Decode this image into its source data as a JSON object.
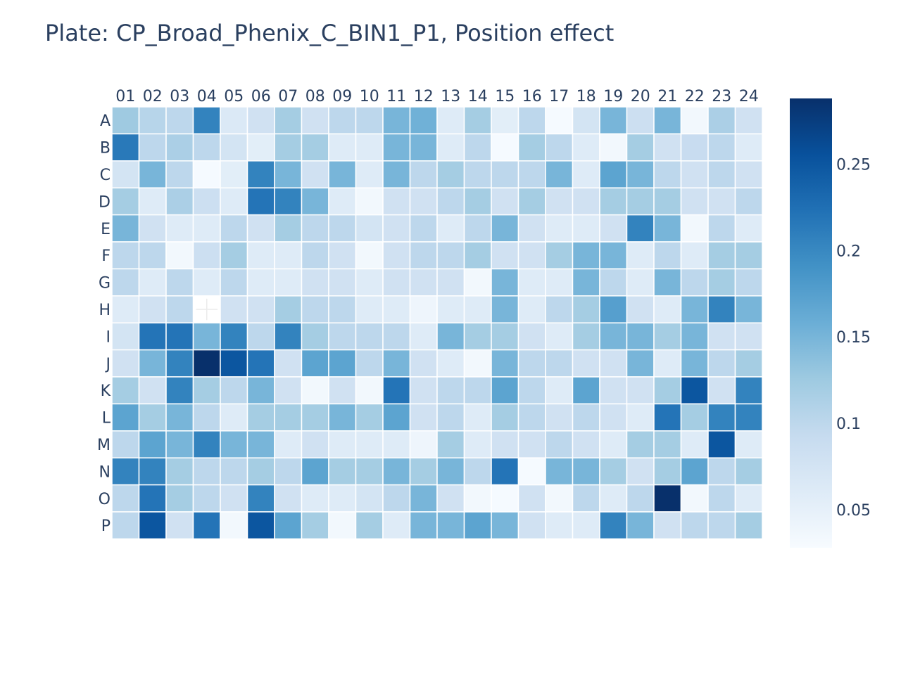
{
  "chart_data": {
    "type": "heatmap",
    "title": "Plate: CP_Broad_Phenix_C_BIN1_P1, Position effect",
    "columns": [
      "01",
      "02",
      "03",
      "04",
      "05",
      "06",
      "07",
      "08",
      "09",
      "10",
      "11",
      "12",
      "13",
      "14",
      "15",
      "16",
      "17",
      "18",
      "19",
      "20",
      "21",
      "22",
      "23",
      "24"
    ],
    "rows": [
      "A",
      "B",
      "C",
      "D",
      "E",
      "F",
      "G",
      "H",
      "I",
      "J",
      "K",
      "L",
      "M",
      "N",
      "O",
      "P"
    ],
    "colorscale": "Blues",
    "zmin": 0.028,
    "zmax": 0.288,
    "colorbar_ticks": [
      "0.05",
      "0.1",
      "0.15",
      "0.2",
      "0.25"
    ],
    "colorbar_tick_values": [
      0.05,
      0.1,
      0.15,
      0.2,
      0.25
    ],
    "missing": [
      [
        "H",
        "04"
      ]
    ],
    "values": [
      [
        0.125,
        0.105,
        0.1,
        0.205,
        0.065,
        0.08,
        0.12,
        0.08,
        0.1,
        0.1,
        0.15,
        0.155,
        0.06,
        0.12,
        0.055,
        0.1,
        0.03,
        0.075,
        0.15,
        0.085,
        0.15,
        0.035,
        0.115,
        0.08
      ],
      [
        0.215,
        0.1,
        0.115,
        0.1,
        0.075,
        0.055,
        0.12,
        0.12,
        0.06,
        0.06,
        0.15,
        0.15,
        0.06,
        0.1,
        0.03,
        0.12,
        0.1,
        0.06,
        0.035,
        0.12,
        0.08,
        0.09,
        0.1,
        0.06
      ],
      [
        0.075,
        0.15,
        0.1,
        0.03,
        0.055,
        0.205,
        0.15,
        0.08,
        0.15,
        0.06,
        0.15,
        0.1,
        0.12,
        0.1,
        0.1,
        0.1,
        0.15,
        0.06,
        0.17,
        0.15,
        0.1,
        0.08,
        0.1,
        0.08
      ],
      [
        0.12,
        0.06,
        0.115,
        0.085,
        0.06,
        0.22,
        0.205,
        0.15,
        0.06,
        0.035,
        0.08,
        0.08,
        0.1,
        0.12,
        0.08,
        0.12,
        0.08,
        0.08,
        0.12,
        0.12,
        0.12,
        0.08,
        0.08,
        0.1
      ],
      [
        0.15,
        0.08,
        0.06,
        0.06,
        0.1,
        0.08,
        0.12,
        0.1,
        0.1,
        0.075,
        0.08,
        0.1,
        0.06,
        0.1,
        0.15,
        0.08,
        0.06,
        0.06,
        0.08,
        0.205,
        0.15,
        0.035,
        0.1,
        0.06
      ],
      [
        0.1,
        0.1,
        0.035,
        0.085,
        0.12,
        0.06,
        0.06,
        0.1,
        0.08,
        0.035,
        0.08,
        0.1,
        0.1,
        0.12,
        0.08,
        0.08,
        0.12,
        0.15,
        0.15,
        0.06,
        0.1,
        0.06,
        0.12,
        0.12
      ],
      [
        0.1,
        0.06,
        0.1,
        0.06,
        0.1,
        0.06,
        0.06,
        0.08,
        0.08,
        0.06,
        0.08,
        0.08,
        0.08,
        0.035,
        0.15,
        0.06,
        0.06,
        0.15,
        0.1,
        0.06,
        0.15,
        0.1,
        0.12,
        0.1
      ],
      [
        0.06,
        0.08,
        0.1,
        null,
        0.08,
        0.08,
        0.12,
        0.1,
        0.1,
        0.06,
        0.06,
        0.04,
        0.06,
        0.06,
        0.15,
        0.06,
        0.1,
        0.12,
        0.175,
        0.08,
        0.06,
        0.15,
        0.205,
        0.15
      ],
      [
        0.075,
        0.22,
        0.22,
        0.15,
        0.205,
        0.1,
        0.205,
        0.12,
        0.1,
        0.1,
        0.1,
        0.06,
        0.15,
        0.12,
        0.12,
        0.08,
        0.06,
        0.12,
        0.15,
        0.15,
        0.12,
        0.15,
        0.08,
        0.08
      ],
      [
        0.08,
        0.15,
        0.205,
        0.288,
        0.25,
        0.22,
        0.08,
        0.17,
        0.17,
        0.1,
        0.15,
        0.08,
        0.06,
        0.035,
        0.15,
        0.1,
        0.1,
        0.08,
        0.08,
        0.15,
        0.06,
        0.15,
        0.1,
        0.12
      ],
      [
        0.12,
        0.08,
        0.205,
        0.12,
        0.1,
        0.15,
        0.08,
        0.035,
        0.08,
        0.035,
        0.22,
        0.08,
        0.1,
        0.1,
        0.17,
        0.1,
        0.06,
        0.17,
        0.08,
        0.08,
        0.12,
        0.25,
        0.08,
        0.205
      ],
      [
        0.17,
        0.12,
        0.15,
        0.1,
        0.06,
        0.12,
        0.12,
        0.12,
        0.15,
        0.12,
        0.17,
        0.08,
        0.1,
        0.06,
        0.12,
        0.1,
        0.08,
        0.1,
        0.08,
        0.06,
        0.22,
        0.12,
        0.205,
        0.205
      ],
      [
        0.1,
        0.17,
        0.15,
        0.205,
        0.15,
        0.15,
        0.06,
        0.08,
        0.06,
        0.06,
        0.06,
        0.04,
        0.12,
        0.06,
        0.08,
        0.08,
        0.1,
        0.08,
        0.06,
        0.12,
        0.12,
        0.06,
        0.25,
        0.06
      ],
      [
        0.205,
        0.205,
        0.12,
        0.1,
        0.1,
        0.12,
        0.1,
        0.17,
        0.12,
        0.12,
        0.15,
        0.12,
        0.15,
        0.1,
        0.22,
        0.03,
        0.15,
        0.15,
        0.12,
        0.08,
        0.12,
        0.17,
        0.1,
        0.12
      ],
      [
        0.1,
        0.22,
        0.12,
        0.1,
        0.08,
        0.205,
        0.08,
        0.06,
        0.06,
        0.075,
        0.1,
        0.15,
        0.08,
        0.035,
        0.03,
        0.08,
        0.035,
        0.1,
        0.06,
        0.1,
        0.288,
        0.035,
        0.1,
        0.06
      ],
      [
        0.1,
        0.25,
        0.08,
        0.22,
        0.035,
        0.25,
        0.17,
        0.12,
        0.035,
        0.12,
        0.06,
        0.15,
        0.15,
        0.17,
        0.15,
        0.08,
        0.06,
        0.06,
        0.205,
        0.15,
        0.08,
        0.1,
        0.1,
        0.12
      ]
    ]
  }
}
